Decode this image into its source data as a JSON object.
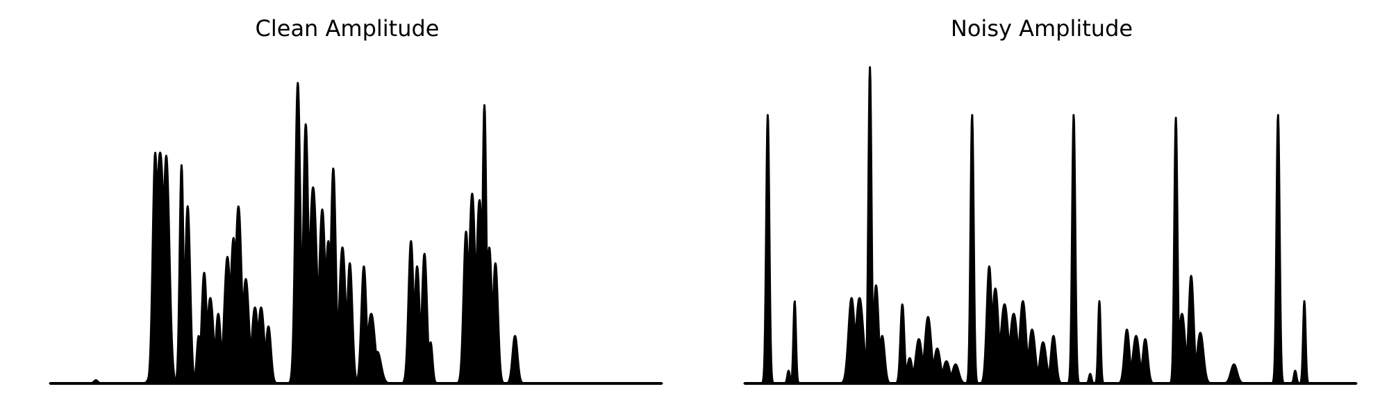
{
  "chart_data": [
    {
      "type": "area",
      "title": "Clean Amplitude",
      "xlabel": "",
      "ylabel": "",
      "axes_visible": false,
      "grid": false,
      "ylim": [
        0,
        1.0
      ],
      "color": "#000000",
      "peaks": [
        {
          "x": 0.075,
          "y": 0.01,
          "w": 0.003
        },
        {
          "x": 0.172,
          "y": 0.73,
          "w": 0.004
        },
        {
          "x": 0.18,
          "y": 0.73,
          "w": 0.007
        },
        {
          "x": 0.19,
          "y": 0.72,
          "w": 0.005
        },
        {
          "x": 0.215,
          "y": 0.69,
          "w": 0.003
        },
        {
          "x": 0.225,
          "y": 0.56,
          "w": 0.004
        },
        {
          "x": 0.243,
          "y": 0.15,
          "w": 0.003
        },
        {
          "x": 0.252,
          "y": 0.35,
          "w": 0.004
        },
        {
          "x": 0.262,
          "y": 0.27,
          "w": 0.005
        },
        {
          "x": 0.275,
          "y": 0.22,
          "w": 0.004
        },
        {
          "x": 0.29,
          "y": 0.4,
          "w": 0.005
        },
        {
          "x": 0.3,
          "y": 0.46,
          "w": 0.005
        },
        {
          "x": 0.308,
          "y": 0.56,
          "w": 0.005
        },
        {
          "x": 0.32,
          "y": 0.33,
          "w": 0.005
        },
        {
          "x": 0.335,
          "y": 0.24,
          "w": 0.005
        },
        {
          "x": 0.345,
          "y": 0.24,
          "w": 0.005
        },
        {
          "x": 0.357,
          "y": 0.18,
          "w": 0.004
        },
        {
          "x": 0.362,
          "y": 0.01,
          "w": 0.002
        },
        {
          "x": 0.405,
          "y": 0.95,
          "w": 0.004
        },
        {
          "x": 0.418,
          "y": 0.82,
          "w": 0.004
        },
        {
          "x": 0.43,
          "y": 0.62,
          "w": 0.006
        },
        {
          "x": 0.445,
          "y": 0.55,
          "w": 0.005
        },
        {
          "x": 0.455,
          "y": 0.45,
          "w": 0.005
        },
        {
          "x": 0.463,
          "y": 0.68,
          "w": 0.004
        },
        {
          "x": 0.478,
          "y": 0.43,
          "w": 0.005
        },
        {
          "x": 0.49,
          "y": 0.38,
          "w": 0.004
        },
        {
          "x": 0.513,
          "y": 0.37,
          "w": 0.004
        },
        {
          "x": 0.525,
          "y": 0.22,
          "w": 0.006
        },
        {
          "x": 0.535,
          "y": 0.1,
          "w": 0.006
        },
        {
          "x": 0.59,
          "y": 0.45,
          "w": 0.004
        },
        {
          "x": 0.6,
          "y": 0.37,
          "w": 0.004
        },
        {
          "x": 0.612,
          "y": 0.41,
          "w": 0.004
        },
        {
          "x": 0.622,
          "y": 0.13,
          "w": 0.003
        },
        {
          "x": 0.68,
          "y": 0.48,
          "w": 0.004
        },
        {
          "x": 0.69,
          "y": 0.6,
          "w": 0.005
        },
        {
          "x": 0.702,
          "y": 0.58,
          "w": 0.005
        },
        {
          "x": 0.71,
          "y": 0.88,
          "w": 0.003
        },
        {
          "x": 0.718,
          "y": 0.43,
          "w": 0.004
        },
        {
          "x": 0.728,
          "y": 0.38,
          "w": 0.004
        },
        {
          "x": 0.76,
          "y": 0.15,
          "w": 0.004
        }
      ]
    },
    {
      "type": "area",
      "title": "Noisy Amplitude",
      "xlabel": "",
      "ylabel": "",
      "axes_visible": false,
      "grid": false,
      "ylim": [
        0,
        1.0
      ],
      "color": "#000000",
      "peaks": [
        {
          "x": 0.038,
          "y": 0.85,
          "w": 0.0025
        },
        {
          "x": 0.082,
          "y": 0.26,
          "w": 0.002
        },
        {
          "x": 0.072,
          "y": 0.04,
          "w": 0.002
        },
        {
          "x": 0.175,
          "y": 0.27,
          "w": 0.005
        },
        {
          "x": 0.188,
          "y": 0.27,
          "w": 0.006
        },
        {
          "x": 0.205,
          "y": 1.0,
          "w": 0.0025
        },
        {
          "x": 0.215,
          "y": 0.31,
          "w": 0.004
        },
        {
          "x": 0.225,
          "y": 0.15,
          "w": 0.004
        },
        {
          "x": 0.258,
          "y": 0.25,
          "w": 0.003
        },
        {
          "x": 0.27,
          "y": 0.08,
          "w": 0.004
        },
        {
          "x": 0.285,
          "y": 0.14,
          "w": 0.005
        },
        {
          "x": 0.3,
          "y": 0.21,
          "w": 0.005
        },
        {
          "x": 0.315,
          "y": 0.11,
          "w": 0.005
        },
        {
          "x": 0.33,
          "y": 0.07,
          "w": 0.005
        },
        {
          "x": 0.345,
          "y": 0.06,
          "w": 0.005
        },
        {
          "x": 0.372,
          "y": 0.85,
          "w": 0.0025
        },
        {
          "x": 0.4,
          "y": 0.37,
          "w": 0.004
        },
        {
          "x": 0.41,
          "y": 0.3,
          "w": 0.005
        },
        {
          "x": 0.425,
          "y": 0.25,
          "w": 0.006
        },
        {
          "x": 0.44,
          "y": 0.22,
          "w": 0.006
        },
        {
          "x": 0.455,
          "y": 0.26,
          "w": 0.005
        },
        {
          "x": 0.47,
          "y": 0.17,
          "w": 0.005
        },
        {
          "x": 0.488,
          "y": 0.13,
          "w": 0.005
        },
        {
          "x": 0.505,
          "y": 0.15,
          "w": 0.004
        },
        {
          "x": 0.538,
          "y": 0.85,
          "w": 0.0025
        },
        {
          "x": 0.58,
          "y": 0.26,
          "w": 0.002
        },
        {
          "x": 0.565,
          "y": 0.03,
          "w": 0.002
        },
        {
          "x": 0.625,
          "y": 0.17,
          "w": 0.004
        },
        {
          "x": 0.64,
          "y": 0.15,
          "w": 0.005
        },
        {
          "x": 0.655,
          "y": 0.14,
          "w": 0.004
        },
        {
          "x": 0.705,
          "y": 0.84,
          "w": 0.0025
        },
        {
          "x": 0.715,
          "y": 0.22,
          "w": 0.005
        },
        {
          "x": 0.73,
          "y": 0.34,
          "w": 0.004
        },
        {
          "x": 0.745,
          "y": 0.16,
          "w": 0.005
        },
        {
          "x": 0.8,
          "y": 0.06,
          "w": 0.005
        },
        {
          "x": 0.872,
          "y": 0.85,
          "w": 0.0025
        },
        {
          "x": 0.915,
          "y": 0.26,
          "w": 0.002
        },
        {
          "x": 0.9,
          "y": 0.04,
          "w": 0.002
        }
      ]
    }
  ]
}
